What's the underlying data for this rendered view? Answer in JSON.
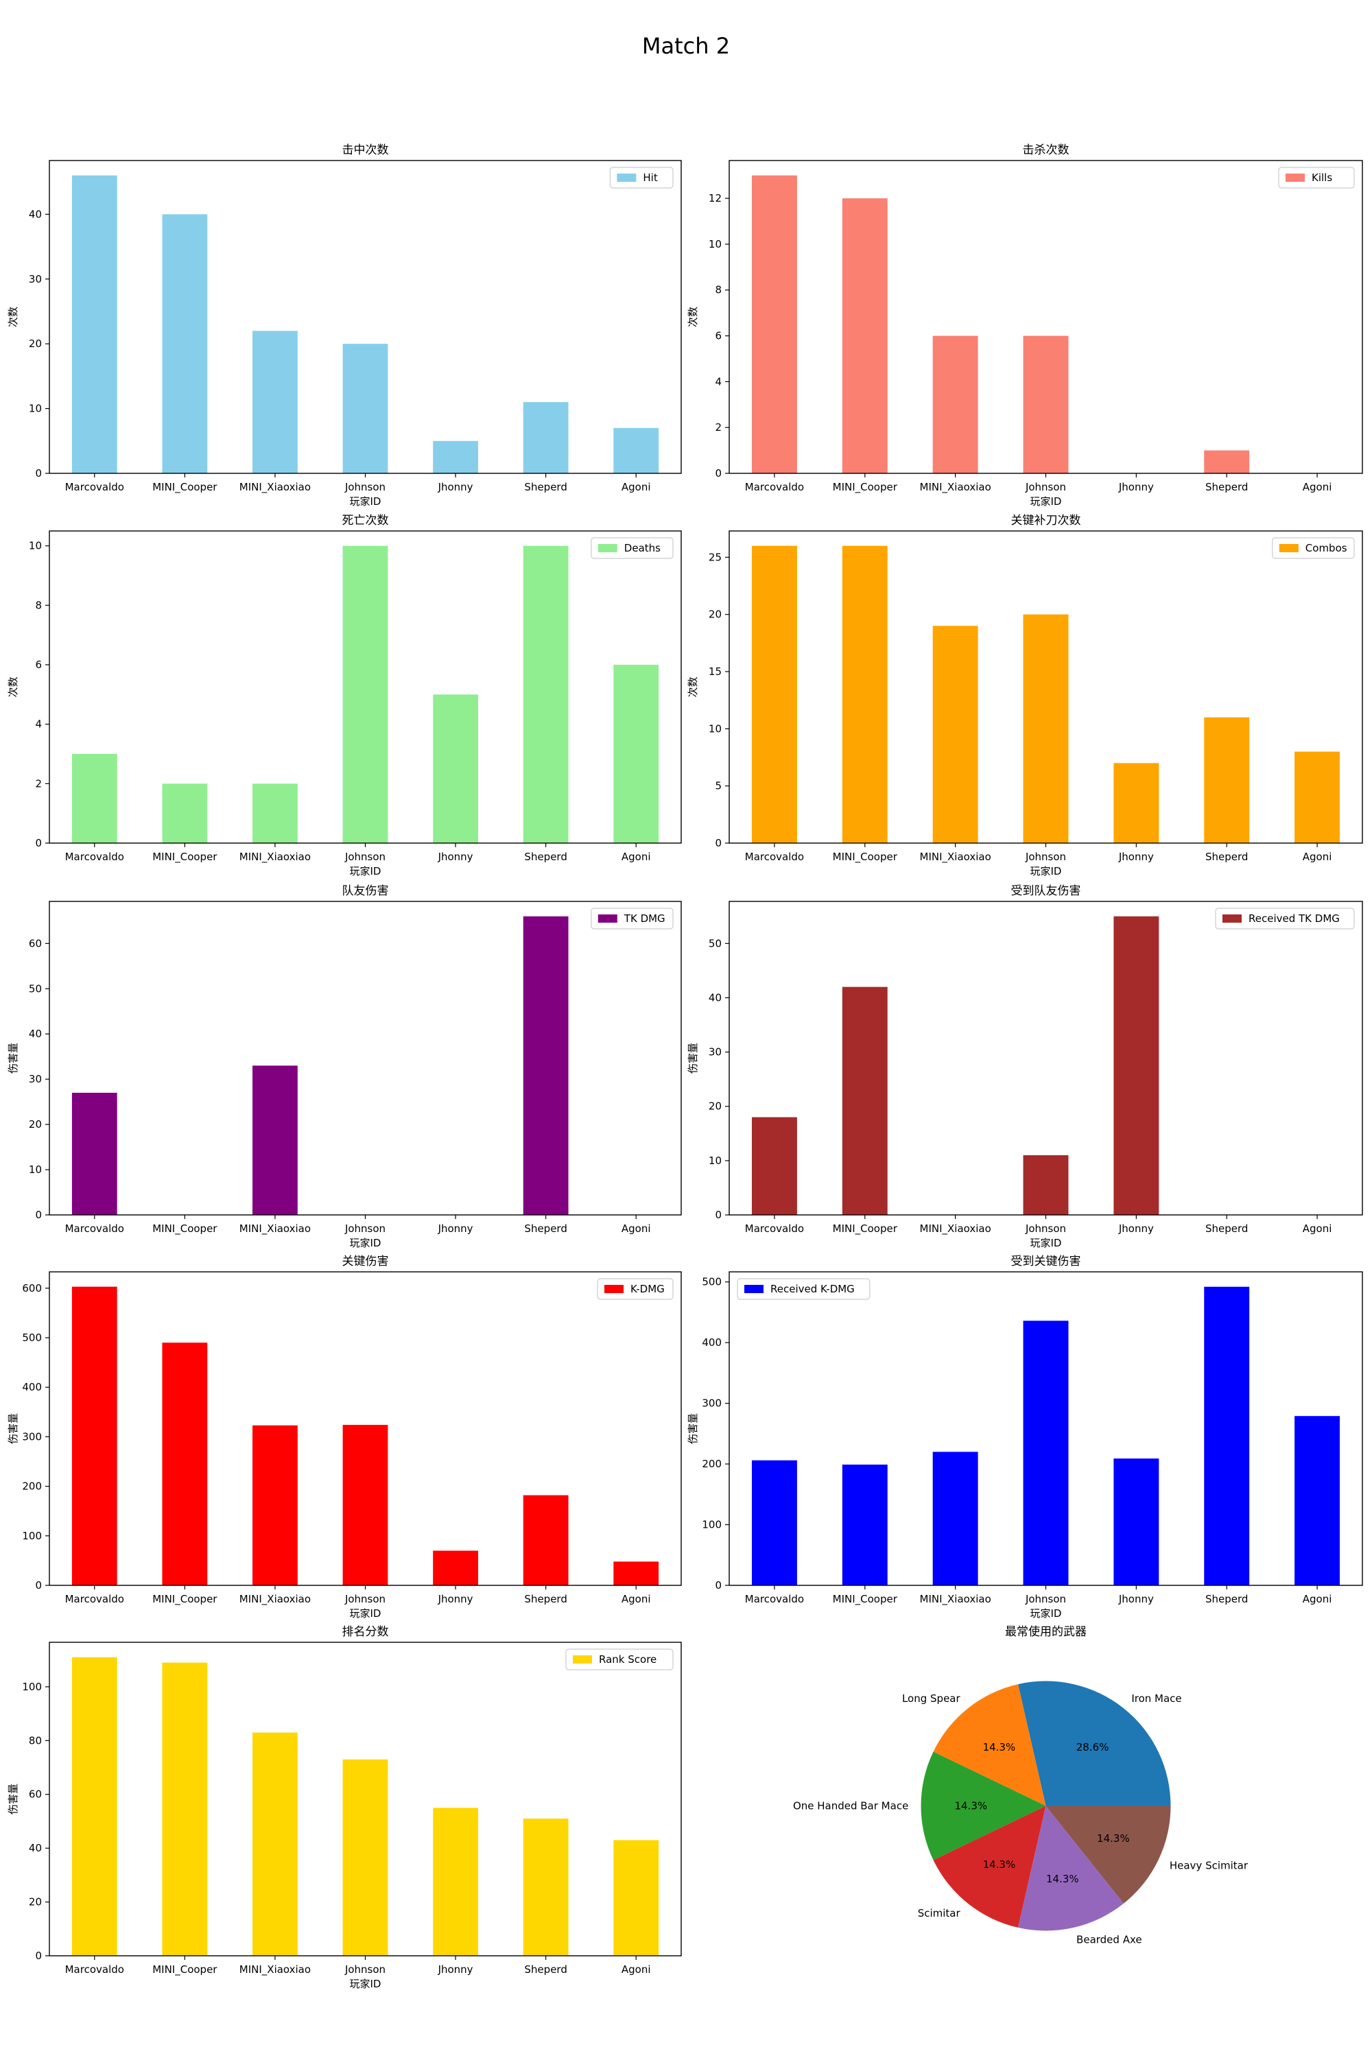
{
  "figure": {
    "title": "Match 2"
  },
  "chart_data": [
    {
      "type": "bar",
      "title": "击中次数",
      "xlabel": "玩家ID",
      "ylabel": "次数",
      "categories": [
        "Marcovaldo",
        "MINI_Cooper",
        "MINI_Xiaoxiao",
        "Johnson",
        "Jhonny",
        "Sheperd",
        "Agoni"
      ],
      "series": [
        {
          "name": "Hit",
          "values": [
            46,
            40,
            22,
            20,
            5,
            11,
            7
          ],
          "color": "#87ceeb"
        }
      ],
      "ylim": [
        0,
        48.3
      ],
      "yticks": [
        0,
        10,
        20,
        30,
        40
      ],
      "legend": "top-right"
    },
    {
      "type": "bar",
      "title": "击杀次数",
      "xlabel": "玩家ID",
      "ylabel": "次数",
      "categories": [
        "Marcovaldo",
        "MINI_Cooper",
        "MINI_Xiaoxiao",
        "Johnson",
        "Jhonny",
        "Sheperd",
        "Agoni"
      ],
      "series": [
        {
          "name": "Kills",
          "values": [
            13,
            12,
            6,
            6,
            0,
            1,
            0
          ],
          "color": "#fa8072"
        }
      ],
      "ylim": [
        0,
        13.65
      ],
      "yticks": [
        0,
        2,
        4,
        6,
        8,
        10,
        12
      ],
      "legend": "top-right"
    },
    {
      "type": "bar",
      "title": "死亡次数",
      "xlabel": "玩家ID",
      "ylabel": "次数",
      "categories": [
        "Marcovaldo",
        "MINI_Cooper",
        "MINI_Xiaoxiao",
        "Johnson",
        "Jhonny",
        "Sheperd",
        "Agoni"
      ],
      "series": [
        {
          "name": "Deaths",
          "values": [
            3,
            2,
            2,
            10,
            5,
            10,
            6
          ],
          "color": "#90ee90"
        }
      ],
      "ylim": [
        0,
        10.5
      ],
      "yticks": [
        0,
        2,
        4,
        6,
        8,
        10
      ],
      "legend": "top-right"
    },
    {
      "type": "bar",
      "title": "关键补刀次数",
      "xlabel": "玩家ID",
      "ylabel": "次数",
      "categories": [
        "Marcovaldo",
        "MINI_Cooper",
        "MINI_Xiaoxiao",
        "Johnson",
        "Jhonny",
        "Sheperd",
        "Agoni"
      ],
      "series": [
        {
          "name": "Combos",
          "values": [
            26,
            26,
            19,
            20,
            7,
            11,
            8
          ],
          "color": "#ffa500"
        }
      ],
      "ylim": [
        0,
        27.3
      ],
      "yticks": [
        0,
        5,
        10,
        15,
        20,
        25
      ],
      "legend": "top-right"
    },
    {
      "type": "bar",
      "title": "队友伤害",
      "xlabel": "玩家ID",
      "ylabel": "伤害量",
      "categories": [
        "Marcovaldo",
        "MINI_Cooper",
        "MINI_Xiaoxiao",
        "Johnson",
        "Jhonny",
        "Sheperd",
        "Agoni"
      ],
      "series": [
        {
          "name": "TK DMG",
          "values": [
            27,
            0,
            33,
            0,
            0,
            66,
            0
          ],
          "color": "#800080"
        }
      ],
      "ylim": [
        0,
        69.3
      ],
      "yticks": [
        0,
        10,
        20,
        30,
        40,
        50,
        60
      ],
      "legend": "top-right"
    },
    {
      "type": "bar",
      "title": "受到队友伤害",
      "xlabel": "玩家ID",
      "ylabel": "伤害量",
      "categories": [
        "Marcovaldo",
        "MINI_Cooper",
        "MINI_Xiaoxiao",
        "Johnson",
        "Jhonny",
        "Sheperd",
        "Agoni"
      ],
      "series": [
        {
          "name": "Received TK DMG",
          "values": [
            18,
            42,
            0,
            11,
            55,
            0,
            0
          ],
          "color": "#a52a2a"
        }
      ],
      "ylim": [
        0,
        57.75
      ],
      "yticks": [
        0,
        10,
        20,
        30,
        40,
        50
      ],
      "legend": "top-right"
    },
    {
      "type": "bar",
      "title": "关键伤害",
      "xlabel": "玩家ID",
      "ylabel": "伤害量",
      "categories": [
        "Marcovaldo",
        "MINI_Cooper",
        "MINI_Xiaoxiao",
        "Johnson",
        "Jhonny",
        "Sheperd",
        "Agoni"
      ],
      "series": [
        {
          "name": "K-DMG",
          "values": [
            603,
            490,
            323,
            324,
            70,
            182,
            48
          ],
          "color": "#ff0000"
        }
      ],
      "ylim": [
        0,
        633
      ],
      "yticks": [
        0,
        100,
        200,
        300,
        400,
        500,
        600
      ],
      "legend": "top-right"
    },
    {
      "type": "bar",
      "title": "受到关键伤害",
      "xlabel": "玩家ID",
      "ylabel": "伤害量",
      "categories": [
        "Marcovaldo",
        "MINI_Cooper",
        "MINI_Xiaoxiao",
        "Johnson",
        "Jhonny",
        "Sheperd",
        "Agoni"
      ],
      "series": [
        {
          "name": "Received K-DMG",
          "values": [
            206,
            199,
            220,
            436,
            209,
            492,
            279
          ],
          "color": "#0000ff"
        }
      ],
      "ylim": [
        0,
        516.6
      ],
      "yticks": [
        0,
        100,
        200,
        300,
        400,
        500
      ],
      "legend": "top-left"
    },
    {
      "type": "bar",
      "title": "排名分数",
      "xlabel": "玩家ID",
      "ylabel": "伤害量",
      "categories": [
        "Marcovaldo",
        "MINI_Cooper",
        "MINI_Xiaoxiao",
        "Johnson",
        "Jhonny",
        "Sheperd",
        "Agoni"
      ],
      "series": [
        {
          "name": "Rank Score",
          "values": [
            111,
            109,
            83,
            73,
            55,
            51,
            43
          ],
          "color": "#ffd700"
        }
      ],
      "ylim": [
        0,
        116.55
      ],
      "yticks": [
        0,
        20,
        40,
        60,
        80,
        100
      ],
      "legend": "top-right"
    },
    {
      "type": "pie",
      "title": "最常使用的武器",
      "labels": [
        "Iron Mace",
        "Long Spear",
        "One Handed Bar Mace",
        "Scimitar",
        "Bearded Axe",
        "Heavy Scimitar"
      ],
      "values": [
        28.6,
        14.3,
        14.3,
        14.3,
        14.3,
        14.3
      ],
      "value_labels": [
        "28.6%",
        "14.3%",
        "14.3%",
        "14.3%",
        "14.3%",
        "14.3%"
      ],
      "colors": [
        "#1f77b4",
        "#ff7f0e",
        "#2ca02c",
        "#d62728",
        "#9467bd",
        "#8c564b"
      ]
    }
  ]
}
